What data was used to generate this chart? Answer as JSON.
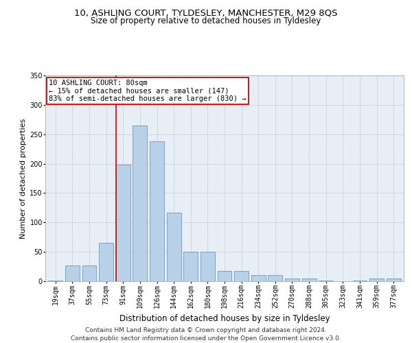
{
  "title1": "10, ASHLING COURT, TYLDESLEY, MANCHESTER, M29 8QS",
  "title2": "Size of property relative to detached houses in Tyldesley",
  "xlabel": "Distribution of detached houses by size in Tyldesley",
  "ylabel": "Number of detached properties",
  "categories": [
    "19sqm",
    "37sqm",
    "55sqm",
    "73sqm",
    "91sqm",
    "109sqm",
    "126sqm",
    "144sqm",
    "162sqm",
    "180sqm",
    "198sqm",
    "216sqm",
    "234sqm",
    "252sqm",
    "270sqm",
    "288sqm",
    "305sqm",
    "323sqm",
    "341sqm",
    "359sqm",
    "377sqm"
  ],
  "values": [
    1,
    27,
    27,
    65,
    198,
    265,
    238,
    117,
    50,
    50,
    17,
    17,
    10,
    10,
    5,
    5,
    1,
    0,
    1,
    5,
    5
  ],
  "bar_color": "#b8d0e8",
  "bar_edge_color": "#6699bb",
  "grid_color": "#c8d4e0",
  "background_color": "#e8eef5",
  "annotation_text": "10 ASHLING COURT: 80sqm\n← 15% of detached houses are smaller (147)\n83% of semi-detached houses are larger (830) →",
  "annotation_box_color": "#ffffff",
  "annotation_box_edge": "#cc0000",
  "redline_x": 3.575,
  "ylim": [
    0,
    350
  ],
  "yticks": [
    0,
    50,
    100,
    150,
    200,
    250,
    300,
    350
  ],
  "footer": "Contains HM Land Registry data © Crown copyright and database right 2024.\nContains public sector information licensed under the Open Government Licence v3.0.",
  "title_fontsize": 9.5,
  "subtitle_fontsize": 8.5,
  "xlabel_fontsize": 8.5,
  "ylabel_fontsize": 8,
  "tick_fontsize": 7,
  "annotation_fontsize": 7.5,
  "footer_fontsize": 6.5
}
